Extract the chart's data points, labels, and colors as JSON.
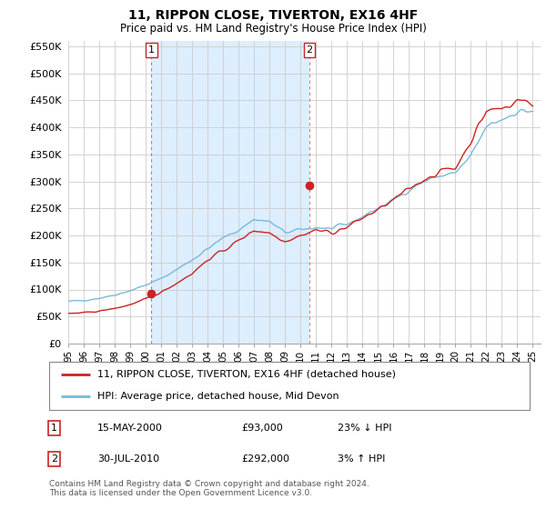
{
  "title": "11, RIPPON CLOSE, TIVERTON, EX16 4HF",
  "subtitle": "Price paid vs. HM Land Registry's House Price Index (HPI)",
  "legend_line1": "11, RIPPON CLOSE, TIVERTON, EX16 4HF (detached house)",
  "legend_line2": "HPI: Average price, detached house, Mid Devon",
  "footer": "Contains HM Land Registry data © Crown copyright and database right 2024.\nThis data is licensed under the Open Government Licence v3.0.",
  "transaction1_date": "15-MAY-2000",
  "transaction1_price": "£93,000",
  "transaction1_hpi": "23% ↓ HPI",
  "transaction2_date": "30-JUL-2010",
  "transaction2_price": "£292,000",
  "transaction2_hpi": "3% ↑ HPI",
  "ylim": [
    0,
    560000
  ],
  "yticks": [
    0,
    50000,
    100000,
    150000,
    200000,
    250000,
    300000,
    350000,
    400000,
    450000,
    500000,
    550000
  ],
  "ytick_labels": [
    "£0",
    "£50K",
    "£100K",
    "£150K",
    "£200K",
    "£250K",
    "£300K",
    "£350K",
    "£400K",
    "£450K",
    "£500K",
    "£550K"
  ],
  "background_color": "#ffffff",
  "grid_color": "#cccccc",
  "hpi_color": "#7ab8d9",
  "price_color": "#cc2222",
  "fill_color": "#ddeeff",
  "transaction_marker_color": "#cc2222",
  "dashed_line_color": "#cc2222",
  "transaction1_x": 2000.37,
  "transaction1_y": 93000,
  "transaction2_x": 2010.58,
  "transaction2_y": 292000,
  "xlim_left": 1995.0,
  "xlim_right": 2025.5
}
